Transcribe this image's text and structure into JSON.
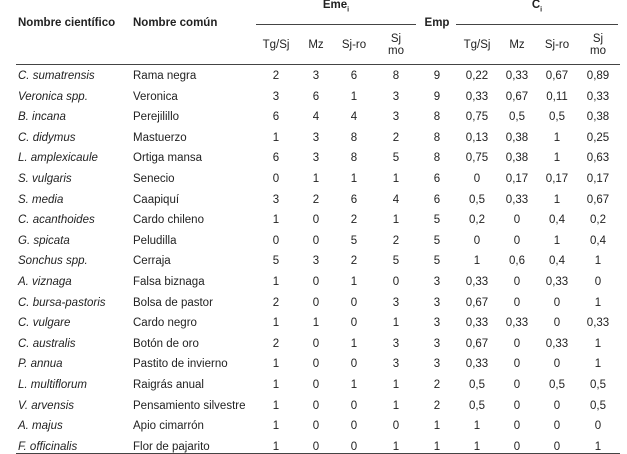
{
  "header": {
    "scientific": "Nombre científico",
    "common": "Nombre común",
    "eme": "Eme",
    "eme_sub": "i",
    "emp": "Emp",
    "c": "C",
    "c_sub": "i",
    "sub_columns": [
      "Tg/Sj",
      "Mz",
      "Sj-ro",
      "Sj mo",
      "Tg/Sj",
      "Mz",
      "Sj-ro",
      "Sj mo"
    ]
  },
  "table": {
    "rows": [
      {
        "scientific": "C. sumatrensis",
        "common": "Rama negra",
        "values": [
          "2",
          "3",
          "6",
          "8",
          "9",
          "0,22",
          "0,33",
          "0,67",
          "0,89"
        ]
      },
      {
        "scientific": "Veronica spp.",
        "common": "Veronica",
        "values": [
          "3",
          "6",
          "1",
          "3",
          "9",
          "0,33",
          "0,67",
          "0,11",
          "0,33"
        ]
      },
      {
        "scientific": "B. incana",
        "common": "Perejilillo",
        "values": [
          "6",
          "4",
          "4",
          "3",
          "8",
          "0,75",
          "0,5",
          "0,5",
          "0,38"
        ]
      },
      {
        "scientific": "C. didymus",
        "common": "Mastuerzo",
        "values": [
          "1",
          "3",
          "8",
          "2",
          "8",
          "0,13",
          "0,38",
          "1",
          "0,25"
        ]
      },
      {
        "scientific": "L. amplexicaule",
        "common": "Ortiga mansa",
        "values": [
          "6",
          "3",
          "8",
          "5",
          "8",
          "0,75",
          "0,38",
          "1",
          "0,63"
        ]
      },
      {
        "scientific": "S. vulgaris",
        "common": "Senecio",
        "values": [
          "0",
          "1",
          "1",
          "1",
          "6",
          "0",
          "0,17",
          "0,17",
          "0,17"
        ]
      },
      {
        "scientific": "S. media",
        "common": "Caapiquí",
        "values": [
          "3",
          "2",
          "6",
          "4",
          "6",
          "0,5",
          "0,33",
          "1",
          "0,67"
        ]
      },
      {
        "scientific": "C. acanthoides",
        "common": "Cardo chileno",
        "values": [
          "1",
          "0",
          "2",
          "1",
          "5",
          "0,2",
          "0",
          "0,4",
          "0,2"
        ]
      },
      {
        "scientific": "G. spicata",
        "common": "Peludilla",
        "values": [
          "0",
          "0",
          "5",
          "2",
          "5",
          "0",
          "0",
          "1",
          "0,4"
        ]
      },
      {
        "scientific": "Sonchus spp.",
        "common": "Cerraja",
        "values": [
          "5",
          "3",
          "2",
          "5",
          "5",
          "1",
          "0,6",
          "0,4",
          "1"
        ]
      },
      {
        "scientific": "A. viznaga",
        "common": "Falsa biznaga",
        "values": [
          "1",
          "0",
          "1",
          "0",
          "3",
          "0,33",
          "0",
          "0,33",
          "0"
        ]
      },
      {
        "scientific": "C. bursa-pastoris",
        "common": "Bolsa de pastor",
        "values": [
          "2",
          "0",
          "0",
          "3",
          "3",
          "0,67",
          "0",
          "0",
          "1"
        ]
      },
      {
        "scientific": "C. vulgare",
        "common": "Cardo negro",
        "values": [
          "1",
          "1",
          "0",
          "1",
          "3",
          "0,33",
          "0,33",
          "0",
          "0,33"
        ]
      },
      {
        "scientific": "C. australis",
        "common": "Botón de oro",
        "values": [
          "2",
          "0",
          "1",
          "3",
          "3",
          "0,67",
          "0",
          "0,33",
          "1"
        ]
      },
      {
        "scientific": "P. annua",
        "common": "Pastito de invierno",
        "values": [
          "1",
          "0",
          "0",
          "3",
          "3",
          "0,33",
          "0",
          "0",
          "1"
        ]
      },
      {
        "scientific": "L. multiflorum",
        "common": "Raigrás anual",
        "values": [
          "1",
          "0",
          "1",
          "1",
          "2",
          "0,5",
          "0",
          "0,5",
          "0,5"
        ]
      },
      {
        "scientific": "V. arvensis",
        "common": "Pensamiento silvestre",
        "values": [
          "1",
          "0",
          "0",
          "1",
          "2",
          "0,5",
          "0",
          "0",
          "0,5"
        ]
      },
      {
        "scientific": "A. majus",
        "common": "Apio cimarrón",
        "values": [
          "1",
          "0",
          "0",
          "0",
          "1",
          "1",
          "0",
          "0",
          "0"
        ]
      },
      {
        "scientific": "F. officinalis",
        "common": "Flor de pajarito",
        "values": [
          "1",
          "0",
          "0",
          "1",
          "1",
          "1",
          "0",
          "0",
          "1"
        ]
      }
    ]
  }
}
